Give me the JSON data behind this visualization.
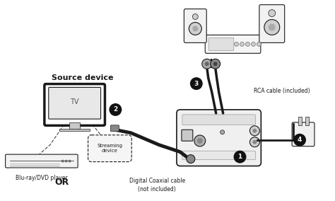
{
  "bg_color": "#ffffff",
  "labels": {
    "source_device": "Source device",
    "tv": "TV",
    "or": "OR",
    "blu_ray": "Blu-ray/DVD player",
    "streaming": "Streaming\ndevice",
    "rca_cable": "RCA cable (included)",
    "digital_coax": "Digital Coaxial cable\n(not included)"
  },
  "circle_color": "#111111",
  "circle_text_color": "#ffffff"
}
